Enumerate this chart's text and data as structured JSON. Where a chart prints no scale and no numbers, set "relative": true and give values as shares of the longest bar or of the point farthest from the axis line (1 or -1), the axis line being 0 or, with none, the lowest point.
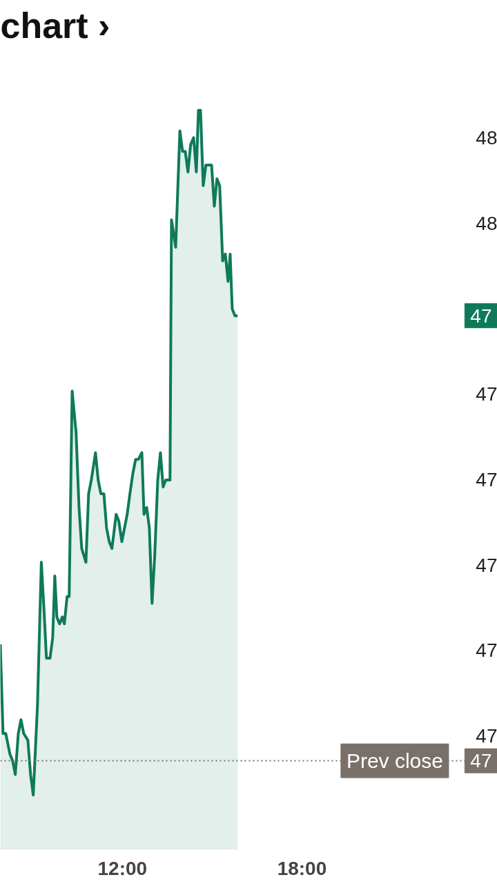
{
  "chart_data": {
    "type": "area",
    "title": "chart ›",
    "relative": true,
    "xlim": [
      7.92,
      24.53
    ],
    "xticks": [
      {
        "value": 12,
        "label": "12:00"
      },
      {
        "value": 18,
        "label": "18:00"
      }
    ],
    "series": [
      {
        "color": "#0f7a5a",
        "x": [
          7.92,
          8.01,
          8.1,
          8.24,
          8.33,
          8.42,
          8.52,
          8.61,
          8.7,
          8.84,
          8.93,
          9.02,
          9.16,
          9.29,
          9.38,
          9.46,
          9.58,
          9.67,
          9.74,
          9.81,
          9.9,
          9.99,
          10.06,
          10.15,
          10.22,
          10.32,
          10.45,
          10.55,
          10.64,
          10.78,
          10.87,
          10.96,
          11.1,
          11.19,
          11.28,
          11.38,
          11.47,
          11.56,
          11.65,
          11.79,
          11.88,
          11.98,
          12.07,
          12.16,
          12.25,
          12.35,
          12.44,
          12.53,
          12.65,
          12.72,
          12.81,
          12.9,
          12.99,
          13.08,
          13.18,
          13.27,
          13.36,
          13.45,
          13.59,
          13.64,
          13.78,
          13.92,
          14.01,
          14.1,
          14.19,
          14.28,
          14.38,
          14.47,
          14.54,
          14.61,
          14.7,
          14.79,
          14.88,
          14.98,
          15.07,
          15.16,
          15.25,
          15.35,
          15.44,
          15.53,
          15.6,
          15.67,
          15.76,
          15.85
        ],
        "values": [
          0.22,
          0.09,
          0.09,
          0.06,
          0.05,
          0.03,
          0.09,
          0.11,
          0.09,
          0.08,
          0.03,
          0,
          0.13,
          0.34,
          0.27,
          0.2,
          0.2,
          0.23,
          0.32,
          0.26,
          0.25,
          0.26,
          0.25,
          0.29,
          0.29,
          0.59,
          0.53,
          0.42,
          0.36,
          0.34,
          0.44,
          0.46,
          0.5,
          0.46,
          0.44,
          0.44,
          0.39,
          0.37,
          0.36,
          0.41,
          0.4,
          0.37,
          0.39,
          0.41,
          0.44,
          0.47,
          0.49,
          0.49,
          0.5,
          0.41,
          0.42,
          0.39,
          0.28,
          0.35,
          0.46,
          0.5,
          0.45,
          0.46,
          0.46,
          0.84,
          0.8,
          0.97,
          0.94,
          0.94,
          0.91,
          0.95,
          0.96,
          0.91,
          1,
          1.0,
          0.89,
          0.92,
          0.92,
          0.92,
          0.86,
          0.9,
          0.89,
          0.78,
          0.79,
          0.75,
          0.79,
          0.71,
          0.7,
          0.7
        ]
      }
    ],
    "ref_lines": [
      {
        "axis": "y",
        "value": 0.05,
        "label": "Prev close",
        "color": "#7a706a",
        "line_style": "dotted"
      }
    ],
    "annotations": [
      "48",
      "48",
      "47",
      "47",
      "47",
      "47",
      "47",
      "47",
      "47"
    ],
    "grid": false,
    "marker": "none",
    "line_style": "solid"
  }
}
